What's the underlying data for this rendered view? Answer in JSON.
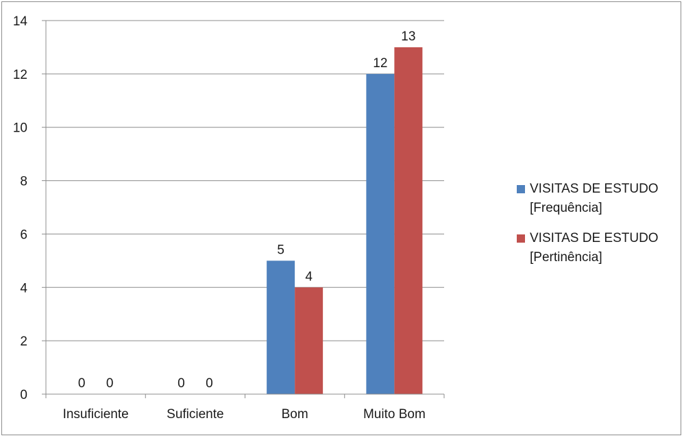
{
  "chart_data": {
    "type": "bar",
    "categories": [
      "Insuficiente",
      "Suficiente",
      "Bom",
      "Muito Bom"
    ],
    "series": [
      {
        "name": "VISITAS DE ESTUDO [Frequência]",
        "legend_label": "VISITAS DE ESTUDO\n[Frequência]",
        "color": "#4f81bd",
        "values": [
          0,
          0,
          5,
          12
        ]
      },
      {
        "name": "VISITAS DE ESTUDO [Pertinência]",
        "legend_label": "VISITAS DE ESTUDO\n[Pertinência]",
        "color": "#c0504d",
        "values": [
          0,
          0,
          4,
          13
        ]
      }
    ],
    "ylim": [
      0,
      14
    ],
    "yticks": [
      "0",
      "2",
      "4",
      "6",
      "8",
      "10",
      "12",
      "14"
    ],
    "grid": true,
    "legend_position": "right",
    "data_labels": true
  }
}
